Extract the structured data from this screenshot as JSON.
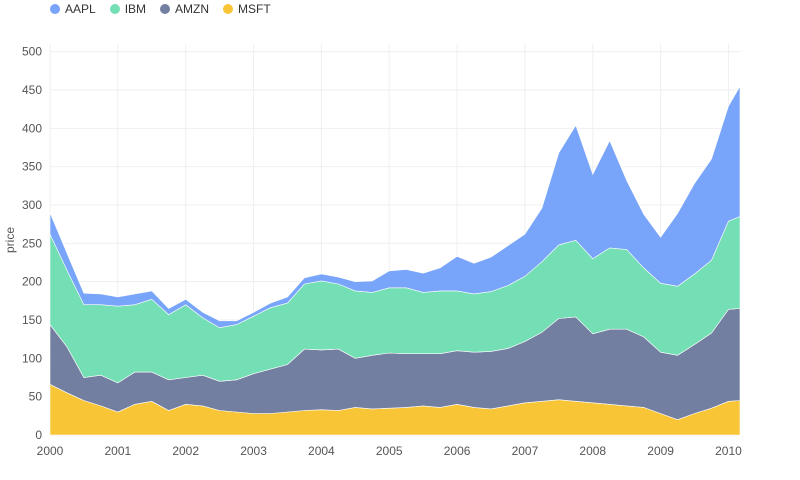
{
  "colors": {
    "AAPL": "#78a4f9",
    "IBM": "#74deb4",
    "AMZN": "#737fa0",
    "MSFT": "#f8c537",
    "grid": "#efefef"
  },
  "chart_data": {
    "type": "area",
    "stacked": true,
    "ylabel": "price",
    "ylim": [
      0,
      510
    ],
    "yticks": [
      "0",
      "50",
      "100",
      "150",
      "200",
      "250",
      "300",
      "350",
      "400",
      "450",
      "500"
    ],
    "xticks": [
      "2000",
      "2001",
      "2002",
      "2003",
      "2004",
      "2005",
      "2006",
      "2007",
      "2008",
      "2009",
      "2010"
    ],
    "xlim": [
      2000.0,
      2010.17
    ],
    "legend_position": "top-left",
    "x": [
      2000.0,
      2000.25,
      2000.5,
      2000.75,
      2001.0,
      2001.25,
      2001.5,
      2001.75,
      2002.0,
      2002.25,
      2002.5,
      2002.75,
      2003.0,
      2003.25,
      2003.5,
      2003.75,
      2004.0,
      2004.25,
      2004.5,
      2004.75,
      2005.0,
      2005.25,
      2005.5,
      2005.75,
      2006.0,
      2006.25,
      2006.5,
      2006.75,
      2007.0,
      2007.25,
      2007.5,
      2007.75,
      2008.0,
      2008.25,
      2008.5,
      2008.75,
      2009.0,
      2009.25,
      2009.5,
      2009.75,
      2010.0,
      2010.17
    ],
    "series": [
      {
        "name": "MSFT",
        "values": [
          66,
          55,
          45,
          38,
          30,
          40,
          44,
          32,
          40,
          38,
          32,
          30,
          28,
          28,
          30,
          32,
          33,
          32,
          36,
          34,
          35,
          36,
          38,
          36,
          40,
          36,
          34,
          38,
          42,
          44,
          46,
          44,
          42,
          40,
          38,
          36,
          28,
          20,
          28,
          35,
          44,
          45
        ]
      },
      {
        "name": "AMZN",
        "values": [
          78,
          60,
          30,
          40,
          38,
          42,
          38,
          40,
          35,
          40,
          38,
          42,
          52,
          58,
          62,
          80,
          78,
          80,
          64,
          70,
          72,
          70,
          68,
          70,
          70,
          72,
          75,
          75,
          80,
          90,
          106,
          110,
          90,
          98,
          100,
          92,
          80,
          84,
          90,
          98,
          120,
          120
        ]
      },
      {
        "name": "IBM",
        "values": [
          118,
          100,
          95,
          92,
          100,
          88,
          95,
          85,
          95,
          75,
          70,
          72,
          75,
          80,
          80,
          85,
          90,
          85,
          88,
          82,
          85,
          86,
          80,
          82,
          78,
          76,
          78,
          82,
          85,
          92,
          96,
          100,
          98,
          106,
          104,
          90,
          90,
          90,
          92,
          95,
          115,
          120
        ]
      },
      {
        "name": "AAPL",
        "values": [
          28,
          22,
          15,
          14,
          12,
          14,
          11,
          8,
          7,
          7,
          9,
          5,
          5,
          6,
          8,
          8,
          9,
          9,
          12,
          15,
          22,
          24,
          25,
          30,
          45,
          40,
          45,
          52,
          55,
          70,
          120,
          150,
          110,
          140,
          90,
          70,
          60,
          95,
          118,
          132,
          150,
          170
        ]
      }
    ]
  },
  "legend": [
    "AAPL",
    "IBM",
    "AMZN",
    "MSFT"
  ]
}
